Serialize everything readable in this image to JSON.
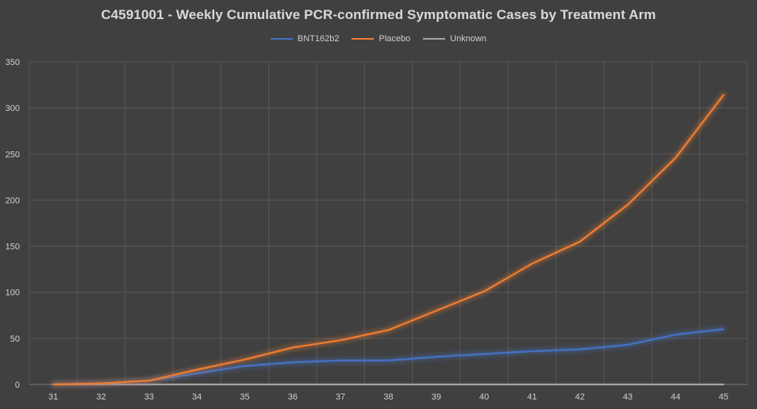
{
  "chart_data": {
    "type": "line",
    "title": "C4591001 - Weekly Cumulative PCR-confirmed Symptomatic Cases by Treatment Arm",
    "xlabel": "",
    "ylabel": "",
    "categories": [
      "31",
      "32",
      "33",
      "34",
      "35",
      "36",
      "37",
      "38",
      "39",
      "40",
      "41",
      "42",
      "43",
      "44",
      "45"
    ],
    "ylim": [
      0,
      350
    ],
    "yticks": [
      0,
      50,
      100,
      150,
      200,
      250,
      300,
      350
    ],
    "grid": true,
    "legend_position": "top-center",
    "series": [
      {
        "name": "BNT162b2",
        "color": "#4472c4",
        "values": [
          0,
          1,
          4,
          12,
          20,
          24,
          26,
          26,
          30,
          33,
          36,
          38,
          43,
          54,
          60
        ]
      },
      {
        "name": "Placebo",
        "color": "#ed7d31",
        "values": [
          0,
          1,
          4,
          16,
          27,
          40,
          48,
          59,
          80,
          101,
          131,
          155,
          195,
          246,
          314
        ]
      },
      {
        "name": "Unknown",
        "color": "#a5a5a5",
        "values": [
          0,
          0,
          0,
          0,
          0,
          0,
          0,
          0,
          0,
          0,
          0,
          0,
          0,
          0,
          0
        ]
      }
    ]
  }
}
